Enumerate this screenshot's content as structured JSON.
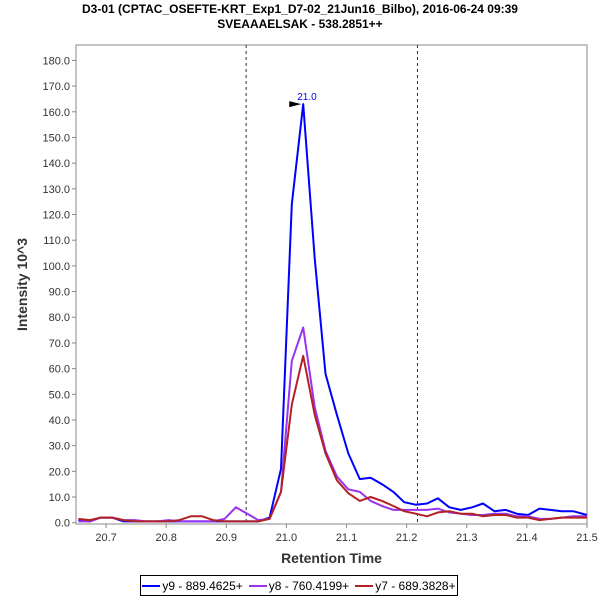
{
  "chart_data": {
    "type": "line",
    "title": "D3-01 (CPTAC_OSEFTE-KRT_Exp1_D7-02_21Jun16_Bilbo), 2016-06-24 09:39",
    "subtitle": "SVEAAAELSAK - 538.2851++",
    "xlabel": "Retention Time",
    "ylabel": "Intensity 10^3",
    "xlim": [
      20.65,
      21.5
    ],
    "ylim": [
      -0.5,
      186
    ],
    "x_ticks": [
      "20.7",
      "20.8",
      "20.9",
      "21.0",
      "21.1",
      "21.2",
      "21.3",
      "21.4",
      "21.5"
    ],
    "y_ticks": [
      "0.0",
      "10.0",
      "20.0",
      "30.0",
      "40.0",
      "50.0",
      "60.0",
      "70.0",
      "80.0",
      "90.0",
      "100.0",
      "110.0",
      "120.0",
      "130.0",
      "140.0",
      "150.0",
      "160.0",
      "170.0",
      "180.0"
    ],
    "grid": false,
    "legend_position": "bottom",
    "boundary_lines": [
      20.933,
      21.218
    ],
    "annotation": {
      "label": "21.0",
      "x": 21.028,
      "y": 163
    },
    "x": [
      20.654,
      20.673,
      20.691,
      20.71,
      20.729,
      20.748,
      20.766,
      20.785,
      20.804,
      20.822,
      20.841,
      20.86,
      20.878,
      20.897,
      20.916,
      20.935,
      20.953,
      20.972,
      20.991,
      21.009,
      21.028,
      21.047,
      21.065,
      21.084,
      21.103,
      21.122,
      21.14,
      21.159,
      21.178,
      21.196,
      21.215,
      21.234,
      21.252,
      21.271,
      21.29,
      21.309,
      21.327,
      21.346,
      21.365,
      21.383,
      21.402,
      21.421,
      21.439,
      21.458,
      21.477,
      21.5
    ],
    "series": [
      {
        "name": "y9 - 889.4625+",
        "color": "#0000ff",
        "values": [
          1,
          0.5,
          2,
          2,
          0.5,
          0.5,
          0.5,
          0.5,
          0.5,
          0.5,
          0.5,
          0.5,
          0.5,
          0.5,
          0.5,
          0.5,
          0.5,
          2,
          21,
          124,
          163,
          103,
          58,
          42,
          27,
          17,
          17.5,
          15,
          12,
          8,
          7,
          7.5,
          9.5,
          6,
          5,
          6,
          7.5,
          4.5,
          5,
          3.5,
          3,
          5.5,
          5,
          4.5,
          4.5,
          3
        ]
      },
      {
        "name": "y8 - 760.4199+",
        "color": "#9933ee",
        "values": [
          0.5,
          0.5,
          2,
          2,
          1,
          1,
          0.5,
          0.5,
          1,
          0.5,
          0.5,
          0.5,
          0.5,
          1.5,
          6,
          3.5,
          1,
          1.5,
          12,
          63,
          76,
          45,
          28,
          18,
          13,
          12,
          8.5,
          6.5,
          5,
          5,
          5,
          5,
          5.5,
          4,
          3.5,
          3,
          3,
          3.5,
          3.5,
          2.5,
          2.5,
          1.5,
          1.5,
          2,
          2.5,
          2.5
        ]
      },
      {
        "name": "y7 - 689.3828+",
        "color": "#b22222",
        "values": [
          1.5,
          1,
          2,
          2,
          1,
          0.5,
          0.5,
          0.5,
          0.5,
          1,
          2.5,
          2.5,
          1,
          0.5,
          0.5,
          0.5,
          0.5,
          1.5,
          12,
          46,
          65,
          42,
          27,
          16.5,
          11.5,
          8.5,
          10,
          8.5,
          6.5,
          4.5,
          3.5,
          2.5,
          4,
          4.5,
          3.5,
          3.5,
          2.5,
          3,
          3,
          2,
          2,
          1,
          1.5,
          2,
          2,
          2
        ]
      }
    ]
  }
}
